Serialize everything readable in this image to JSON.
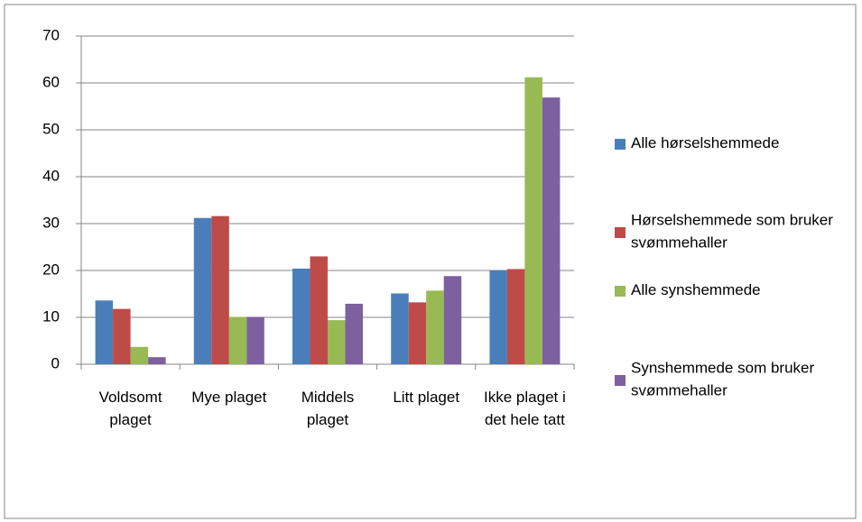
{
  "chart_data": {
    "type": "bar",
    "categories": [
      "Voldsomt plaget",
      "Mye plaget",
      "Middels plaget",
      "Litt plaget",
      "Ikke plaget i det hele tatt"
    ],
    "series": [
      {
        "name": "Alle hørselshemmede",
        "color": "#4a7ebb",
        "values": [
          13.6,
          31.2,
          20.4,
          15.1,
          20.0
        ]
      },
      {
        "name": "Hørselshemmede som bruker svømmehaller",
        "color": "#be4b48",
        "values": [
          11.8,
          31.6,
          23.0,
          13.2,
          20.3
        ]
      },
      {
        "name": "Alle synshemmede",
        "color": "#98b954",
        "values": [
          3.7,
          10.1,
          9.4,
          15.7,
          61.2
        ]
      },
      {
        "name": "Synshemmede som bruker svømmehaller",
        "color": "#7d60a0",
        "values": [
          1.5,
          10.1,
          12.9,
          18.8,
          56.9
        ]
      }
    ],
    "ylim": [
      0,
      70
    ],
    "yticks": [
      0,
      10,
      20,
      30,
      40,
      50,
      60,
      70
    ],
    "grid": true,
    "legend": "right"
  }
}
